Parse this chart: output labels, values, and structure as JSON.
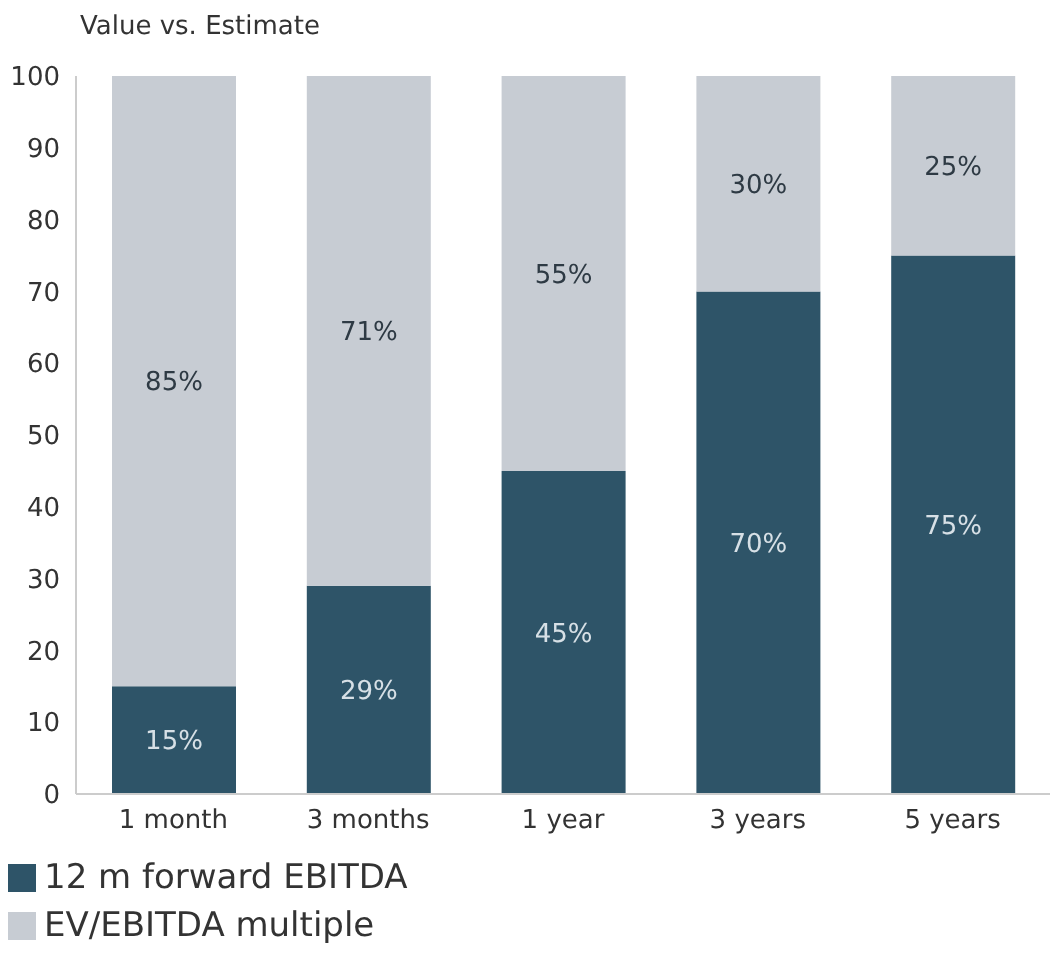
{
  "chart_data": {
    "type": "bar",
    "title": "Value vs. Estimate",
    "stacked": true,
    "categories": [
      "1 month",
      "3 months",
      "1 year",
      "3 years",
      "5 years"
    ],
    "series": [
      {
        "name": "12 m forward EBITDA",
        "color": "#2e5468",
        "values": [
          15,
          29,
          45,
          70,
          75
        ],
        "value_labels": [
          "15%",
          "29%",
          "45%",
          "70%",
          "75%"
        ]
      },
      {
        "name": "EV/EBITDA multiple",
        "color": "#c7ccd3",
        "values": [
          85,
          71,
          55,
          30,
          25
        ],
        "value_labels": [
          "85%",
          "71%",
          "55%",
          "30%",
          "25%"
        ]
      }
    ],
    "ylim": [
      0,
      100
    ],
    "yticks": [
      0,
      10,
      20,
      30,
      40,
      50,
      60,
      70,
      80,
      90,
      100
    ],
    "grid": false,
    "legend": "bottom"
  }
}
